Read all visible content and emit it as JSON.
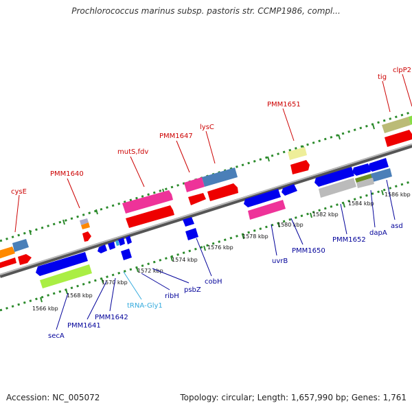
{
  "title": "Prochlorococcus marinus subsp. pastoris str. CCMP1986, compl...",
  "footer": {
    "accession": "Accession: NC_005072",
    "topology": "Topology: circular; Length: 1,657,990 bp; Genes: 1,761"
  },
  "colors": {
    "backbone": "#808080",
    "forward_label": "#cc0000",
    "reverse_label": "#000099",
    "trna_label": "#33aadd",
    "dots": "#2b8a2b"
  },
  "kbp_ticks": [
    {
      "kbp": 1566,
      "label": "1566 kbp"
    },
    {
      "kbp": 1568,
      "label": "1568 kbp"
    },
    {
      "kbp": 1570,
      "label": "1570 kbp"
    },
    {
      "kbp": 1572,
      "label": "1572 kbp"
    },
    {
      "kbp": 1574,
      "label": "1574 kbp"
    },
    {
      "kbp": 1576,
      "label": "1576 kbp"
    },
    {
      "kbp": 1578,
      "label": "1578 kbp"
    },
    {
      "kbp": 1580,
      "label": "1580 kbp"
    },
    {
      "kbp": 1582,
      "label": "1582 kbp"
    },
    {
      "kbp": 1584,
      "label": "1584 kbp"
    },
    {
      "kbp": 1586,
      "label": "1586 kbp"
    }
  ],
  "forward_gene_labels": [
    "cysE",
    "PMM1640",
    "mutS,fdv",
    "PMM1647",
    "lysC",
    "PMM1651",
    "tig",
    "clpP2"
  ],
  "reverse_gene_labels": [
    "secA",
    "PMM1641",
    "PMM1642",
    "tRNA-Gly1",
    "ribH",
    "psbZ",
    "cobH",
    "uvrB",
    "PMM1650",
    "PMM1652",
    "dapA",
    "asd"
  ]
}
